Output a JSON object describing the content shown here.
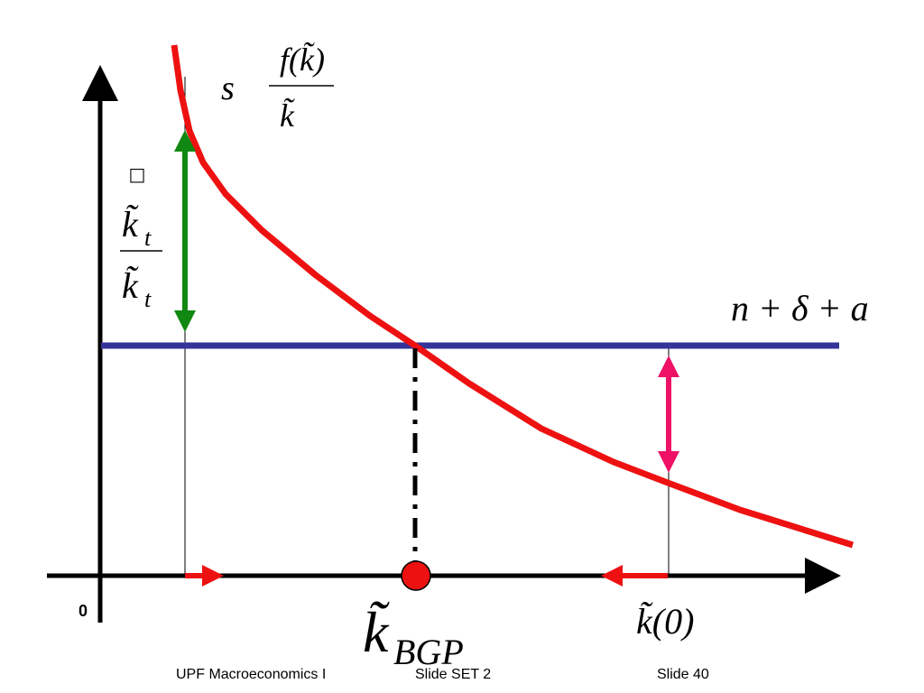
{
  "labels": {
    "savings_s": "s",
    "savings_numerator": "f(k̃)",
    "savings_denominator": "k̃",
    "depreciation": "n + δ + a",
    "growth_dot": "□",
    "growth_numerator": "k̃",
    "growth_numerator_sub": "t",
    "growth_denominator": "k̃",
    "growth_denominator_sub": "t",
    "origin": "0",
    "steady_state": "k̃",
    "steady_state_sub": "BGP",
    "initial": "k̃(0)"
  },
  "footer": [
    "UPF Macroeconomics I",
    "Slide SET 2",
    "Slide 40"
  ]
}
